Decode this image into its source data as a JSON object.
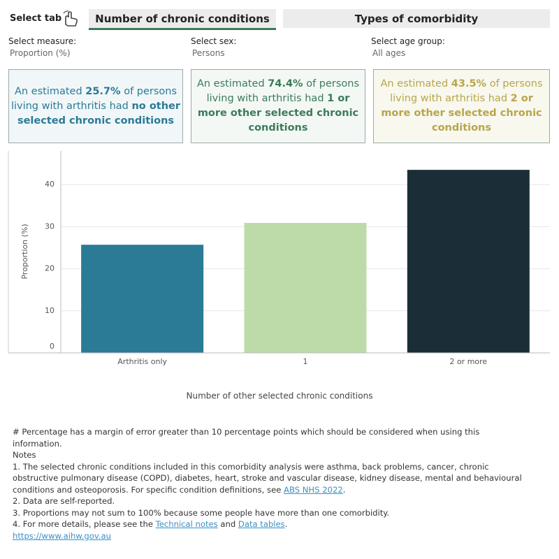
{
  "tabs": {
    "label": "Select tab",
    "items": [
      "Number of chronic conditions",
      "Types of comorbidity"
    ]
  },
  "filters": [
    {
      "label": "Select measure:",
      "value": "Proportion (%)"
    },
    {
      "label": "Select sex:",
      "value": "Persons"
    },
    {
      "label": "Select age group:",
      "value": "All ages"
    }
  ],
  "callouts": [
    {
      "parts": [
        "An estimated ",
        "25.7%",
        " of persons living with arthritis had ",
        "no other selected chronic conditions"
      ]
    },
    {
      "parts": [
        "An estimated ",
        "74.4%",
        " of persons living with arthritis had ",
        "1 or more other selected chronic conditions"
      ]
    },
    {
      "parts": [
        "An estimated ",
        "43.5%",
        " of persons living with arthritis had ",
        "2 or more other selected chronic conditions"
      ]
    }
  ],
  "chart_data": {
    "type": "bar",
    "categories": [
      "Arthritis only",
      "1",
      "2 or more"
    ],
    "values": [
      25.7,
      30.9,
      43.5
    ],
    "colors": [
      "#2b7a96",
      "#bddba8",
      "#1b2e37"
    ],
    "ylim": [
      0,
      48
    ],
    "yticks": [
      0,
      10,
      20,
      30,
      40
    ],
    "y_label": "Proportion (%)",
    "x_label": "Number of other selected chronic conditions",
    "grid": true
  },
  "footer": {
    "margin_note": "# Percentage has a margin of error greater than 10 percentage points which should be considered when using this information.",
    "notes_title": "Notes",
    "note1": [
      "1. The selected chronic conditions included in this comorbidity analysis were asthma, back problems, cancer, chronic obstructive pulmonary disease (COPD), diabetes, heart, stroke and vascular disease, kidney disease, mental and behavioural conditions and osteoporosis. For specific condition definitions, see ",
      "ABS NHS 2022",
      "."
    ],
    "note2": "2. Data are self-reported.",
    "note3": "3. Proportions may not sum to 100% because some people have more than one comorbidity.",
    "note4": [
      "4. For more details, please see the ",
      "Technical notes",
      " and ",
      "Data tables",
      "."
    ],
    "url": "https://www.aihw.gov.au"
  }
}
